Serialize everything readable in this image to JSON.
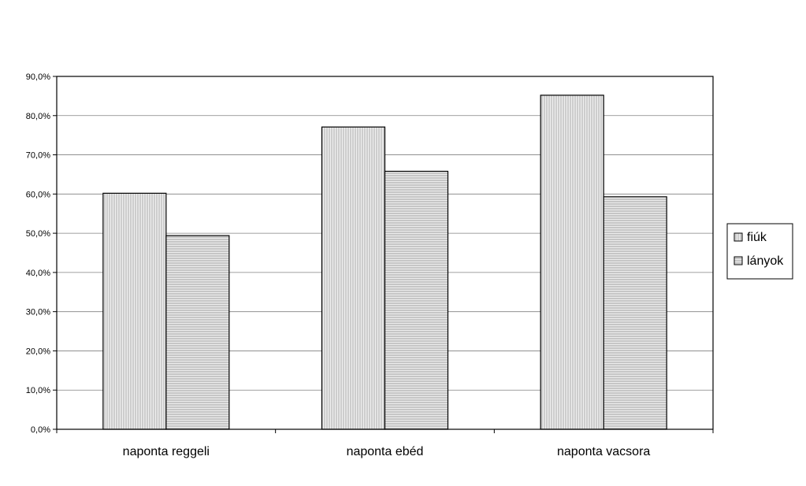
{
  "chart_data": {
    "type": "bar",
    "categories": [
      "naponta reggeli",
      "naponta ebéd",
      "naponta vacsora"
    ],
    "series": [
      {
        "name": "fiúk",
        "values": [
          60.2,
          77.1,
          85.2
        ],
        "pattern": "vertical-lines"
      },
      {
        "name": "lányok",
        "values": [
          49.4,
          65.8,
          59.3
        ],
        "pattern": "horizontal-lines"
      }
    ],
    "ylim": [
      0,
      90
    ],
    "yticks": [
      "0,0%",
      "10,0%",
      "20,0%",
      "30,0%",
      "40,0%",
      "50,0%",
      "60,0%",
      "70,0%",
      "80,0%",
      "90,0%"
    ],
    "grid": true,
    "legend": "right",
    "colors": {
      "bar_fill": "#e9e9e9",
      "pattern_line": "#9a9a9a",
      "grid": "#808080",
      "axis": "#000000"
    }
  }
}
